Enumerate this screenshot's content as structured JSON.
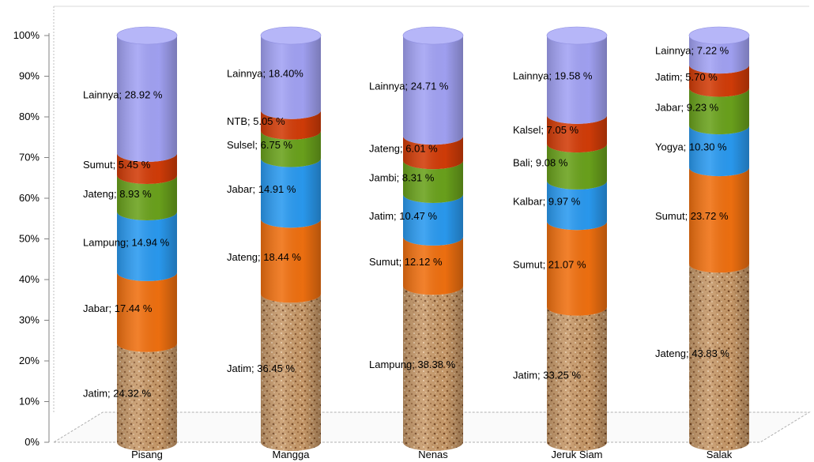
{
  "chart_data": {
    "type": "bar",
    "stacked": true,
    "percent": true,
    "style": "3d-cylinder",
    "title": "",
    "xlabel": "",
    "ylabel": "",
    "ylim": [
      0,
      100
    ],
    "yticks": [
      "0%",
      "10%",
      "20%",
      "30%",
      "40%",
      "50%",
      "60%",
      "70%",
      "80%",
      "90%",
      "100%"
    ],
    "grid": false,
    "legend": "none",
    "categories": [
      "Pisang",
      "Mangga",
      "Nenas",
      "Jeruk Siam",
      "Salak"
    ],
    "stacks": [
      {
        "category": "Pisang",
        "segments": [
          {
            "label": "Jatim;",
            "value": 24.32,
            "text": "24.32 %",
            "fill": "cork"
          },
          {
            "label": "Jabar;",
            "value": 17.44,
            "text": "17.44 %",
            "fill": "#f07010"
          },
          {
            "label": "Lampung;",
            "value": 14.94,
            "text": "14.94 %",
            "fill": "#2a9af0"
          },
          {
            "label": "Jateng;",
            "value": 8.93,
            "text": "8.93 %",
            "fill": "#6aa21c"
          },
          {
            "label": "Sumut;",
            "value": 5.45,
            "text": "5.45 %",
            "fill": "#d23c08"
          },
          {
            "label": "Lainnya;",
            "value": 28.92,
            "text": "28.92 %",
            "fill": "#a2a2f4"
          }
        ]
      },
      {
        "category": "Mangga",
        "segments": [
          {
            "label": "Jatim;",
            "value": 36.45,
            "text": "36.45 %",
            "fill": "cork"
          },
          {
            "label": "Jateng;",
            "value": 18.44,
            "text": "18.44 %",
            "fill": "#f07010"
          },
          {
            "label": "Jabar;",
            "value": 14.91,
            "text": "14.91 %",
            "fill": "#2a9af0"
          },
          {
            "label": "Sulsel;",
            "value": 6.75,
            "text": "6.75 %",
            "fill": "#6aa21c"
          },
          {
            "label": "NTB;",
            "value": 5.05,
            "text": "5.05 %",
            "fill": "#d23c08"
          },
          {
            "label": "Lainnya;",
            "value": 18.4,
            "text": "18.40%",
            "fill": "#a2a2f4"
          }
        ]
      },
      {
        "category": "Nenas",
        "segments": [
          {
            "label": "Lampung;",
            "value": 38.38,
            "text": "38.38 %",
            "fill": "cork"
          },
          {
            "label": "Sumut;",
            "value": 12.12,
            "text": "12.12 %",
            "fill": "#f07010"
          },
          {
            "label": "Jatim;",
            "value": 10.47,
            "text": "10.47 %",
            "fill": "#2a9af0"
          },
          {
            "label": "Jambi;",
            "value": 8.31,
            "text": "8.31 %",
            "fill": "#6aa21c"
          },
          {
            "label": "Jateng;",
            "value": 6.01,
            "text": "6.01 %",
            "fill": "#d23c08"
          },
          {
            "label": "Lainnya;",
            "value": 24.71,
            "text": "24.71 %",
            "fill": "#a2a2f4"
          }
        ]
      },
      {
        "category": "Jeruk Siam",
        "segments": [
          {
            "label": "Jatim;",
            "value": 33.25,
            "text": "33.25 %",
            "fill": "cork"
          },
          {
            "label": "Sumut;",
            "value": 21.07,
            "text": "21.07 %",
            "fill": "#f07010"
          },
          {
            "label": "Kalbar;",
            "value": 9.97,
            "text": "9.97 %",
            "fill": "#2a9af0"
          },
          {
            "label": "Bali;",
            "value": 9.08,
            "text": "9.08 %",
            "fill": "#6aa21c"
          },
          {
            "label": "Kalsel;",
            "value": 7.05,
            "text": "7.05 %",
            "fill": "#d23c08"
          },
          {
            "label": "Lainnya;",
            "value": 19.58,
            "text": "19.58 %",
            "fill": "#a2a2f4"
          }
        ]
      },
      {
        "category": "Salak",
        "segments": [
          {
            "label": "Jateng;",
            "value": 43.83,
            "text": "43.83 %",
            "fill": "cork"
          },
          {
            "label": "Sumut;",
            "value": 23.72,
            "text": "23.72 %",
            "fill": "#f07010"
          },
          {
            "label": "Yogya;",
            "value": 10.3,
            "text": "10.30 %",
            "fill": "#2a9af0"
          },
          {
            "label": "Jabar;",
            "value": 9.23,
            "text": "9.23 %",
            "fill": "#6aa21c"
          },
          {
            "label": "Jatim;",
            "value": 5.7,
            "text": "5.70 %",
            "fill": "#d23c08"
          },
          {
            "label": "Lainnya;",
            "value": 7.22,
            "text": "7.22 %",
            "fill": "#a2a2f4"
          }
        ]
      }
    ]
  }
}
